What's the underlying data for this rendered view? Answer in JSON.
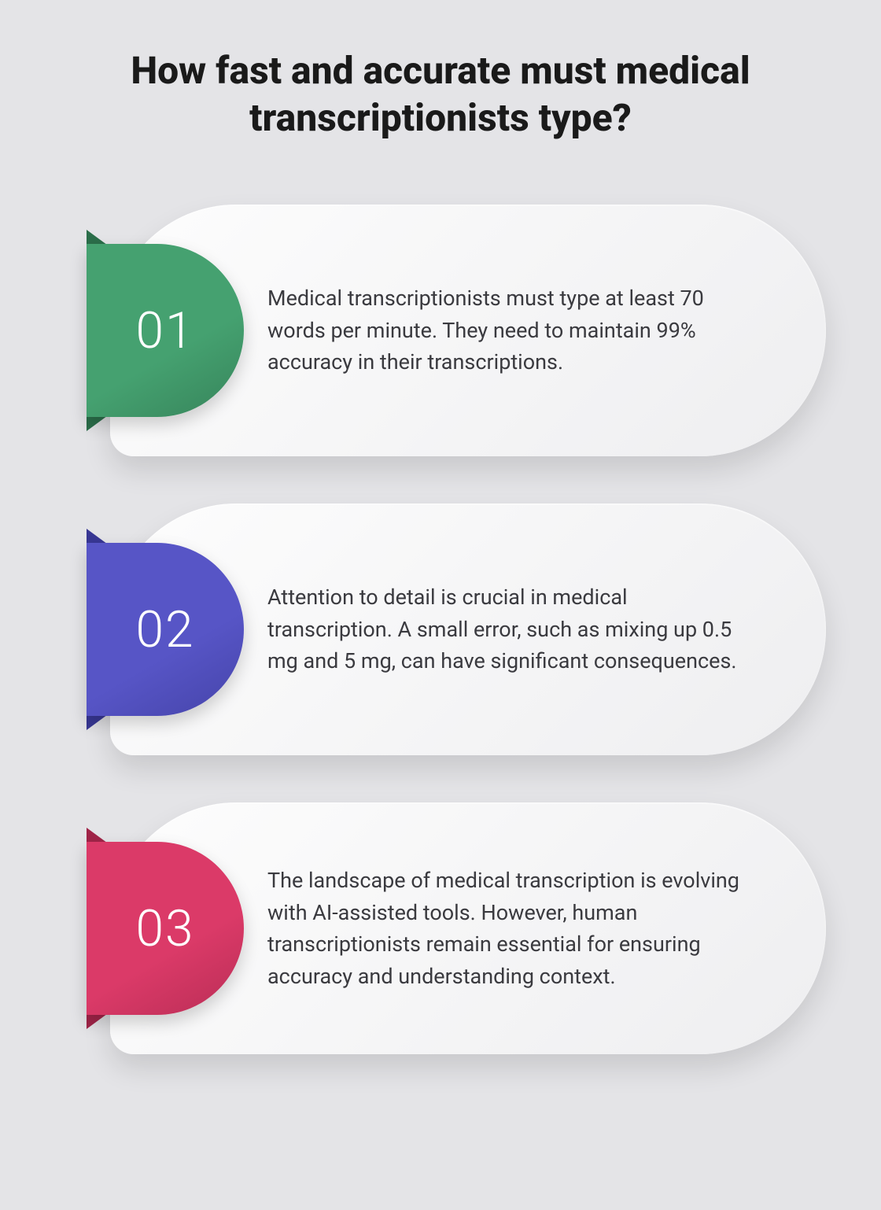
{
  "title": "How fast and accurate must medical transcriptionists type?",
  "background_color": "#e4e4e7",
  "title_color": "#1a1a1a",
  "title_fontsize": 48,
  "card_body_gradient_start": "#fdfdfd",
  "card_body_gradient_end": "#eeeef0",
  "card_text_color": "#3a3a3f",
  "card_text_fontsize": 27,
  "number_color": "#ffffff",
  "number_fontsize": 64,
  "cards": [
    {
      "number": "01",
      "text": "Medical transcriptionists must type at least 70 words per minute. They need to maintain 99% accuracy in their transcriptions.",
      "badge_color": "#45a170",
      "badge_dark": "#2b6e4a"
    },
    {
      "number": "02",
      "text": "Attention to detail is crucial in medical transcription. A small error, such as mixing up 0.5 mg and 5 mg, can have significant consequences.",
      "badge_color": "#5755c6",
      "badge_dark": "#383794"
    },
    {
      "number": "03",
      "text": "The landscape of medical transcription is evolving with AI-assisted tools. However, human transcriptionists remain essential for ensuring accuracy and understanding context.",
      "badge_color": "#db3a68",
      "badge_dark": "#a02448"
    }
  ]
}
